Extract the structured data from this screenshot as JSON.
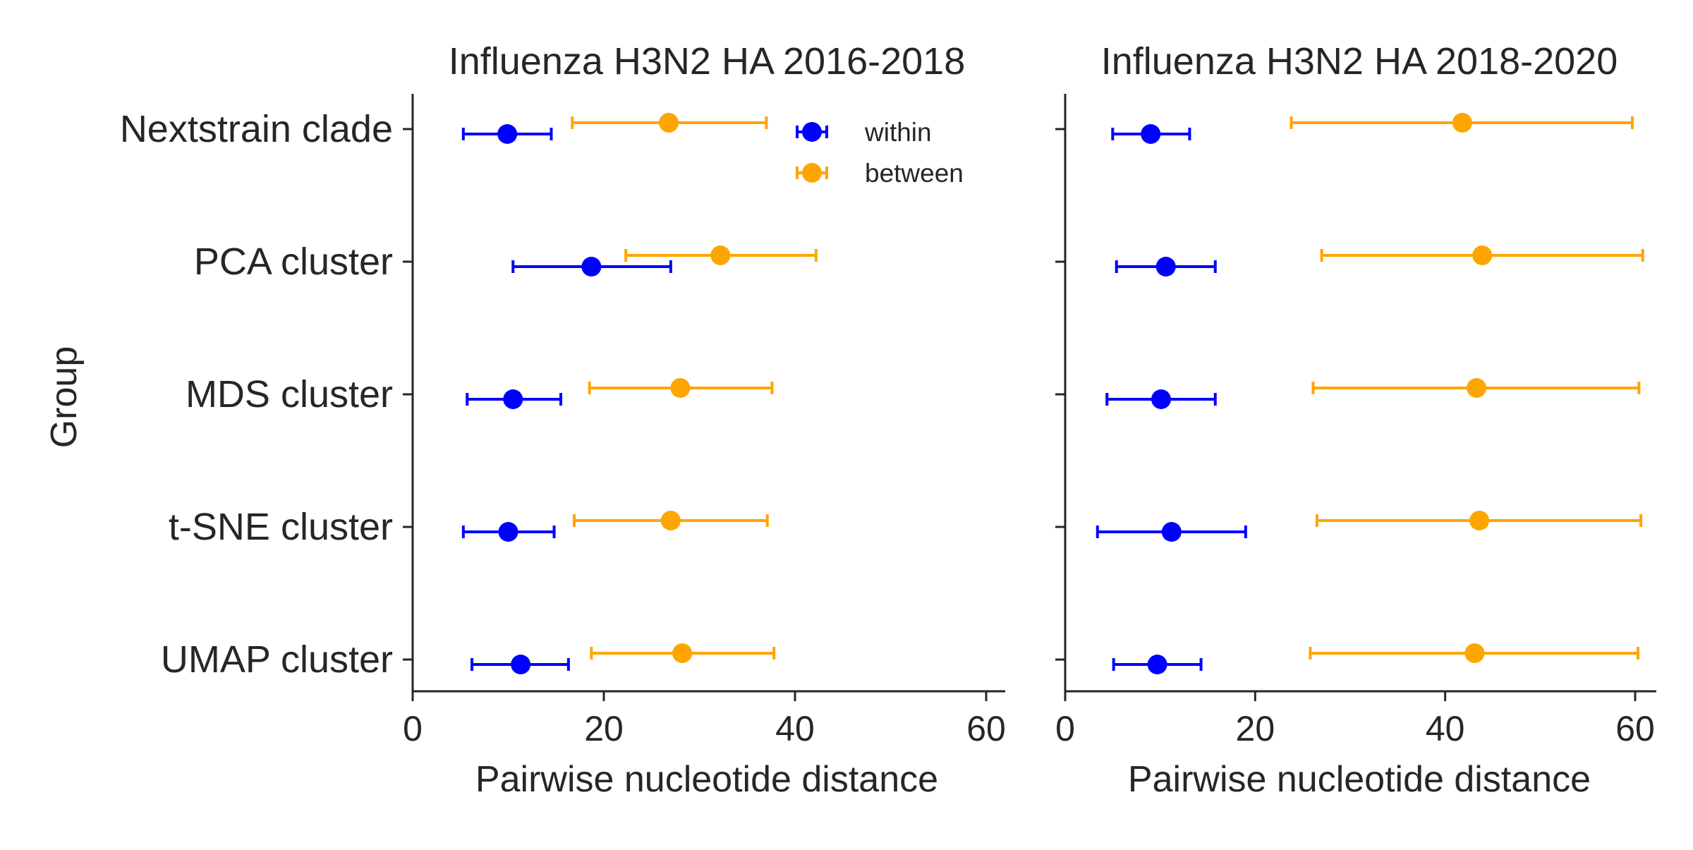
{
  "colors": {
    "within": "#0000ff",
    "between": "#ffa500",
    "axis": "#262626",
    "background": "#ffffff"
  },
  "chart_data": [
    {
      "type": "scatter",
      "error_bars": "horizontal",
      "title": "Influenza H3N2 HA 2016-2018",
      "xlabel": "Pairwise nucleotide distance",
      "ylabel": "Group",
      "xlim": [
        0,
        62
      ],
      "xticks": [
        0,
        20,
        40,
        60
      ],
      "grid": false,
      "legend": {
        "placement": "top-right",
        "entries": [
          "within",
          "between"
        ]
      },
      "categories": [
        "Nextstrain clade",
        "PCA cluster",
        "MDS cluster",
        "t-SNE cluster",
        "UMAP cluster"
      ],
      "series": [
        {
          "name": "within",
          "mean": [
            9.9,
            18.7,
            10.5,
            10.0,
            11.3
          ],
          "low": [
            5.3,
            10.5,
            5.7,
            5.3,
            6.2
          ],
          "high": [
            14.5,
            27.0,
            15.5,
            14.8,
            16.3
          ]
        },
        {
          "name": "between",
          "mean": [
            26.8,
            32.2,
            28.0,
            27.0,
            28.2
          ],
          "low": [
            16.7,
            22.3,
            18.5,
            16.9,
            18.7
          ],
          "high": [
            37.0,
            42.2,
            37.6,
            37.1,
            37.8
          ]
        }
      ]
    },
    {
      "type": "scatter",
      "error_bars": "horizontal",
      "title": "Influenza H3N2 HA 2018-2020",
      "xlabel": "Pairwise nucleotide distance",
      "ylabel": "",
      "xlim": [
        0,
        62
      ],
      "xticks": [
        0,
        20,
        40,
        60
      ],
      "grid": false,
      "categories": [
        "Nextstrain clade",
        "PCA cluster",
        "MDS cluster",
        "t-SNE cluster",
        "UMAP cluster"
      ],
      "series": [
        {
          "name": "within",
          "mean": [
            9.0,
            10.6,
            10.1,
            11.2,
            9.7
          ],
          "low": [
            5.0,
            5.4,
            4.4,
            3.4,
            5.1
          ],
          "high": [
            13.1,
            15.8,
            15.8,
            19.0,
            14.3
          ]
        },
        {
          "name": "between",
          "mean": [
            41.8,
            43.9,
            43.3,
            43.6,
            43.1
          ],
          "low": [
            23.8,
            27.0,
            26.1,
            26.5,
            25.8
          ],
          "high": [
            59.7,
            60.8,
            60.4,
            60.6,
            60.3
          ]
        }
      ]
    }
  ]
}
